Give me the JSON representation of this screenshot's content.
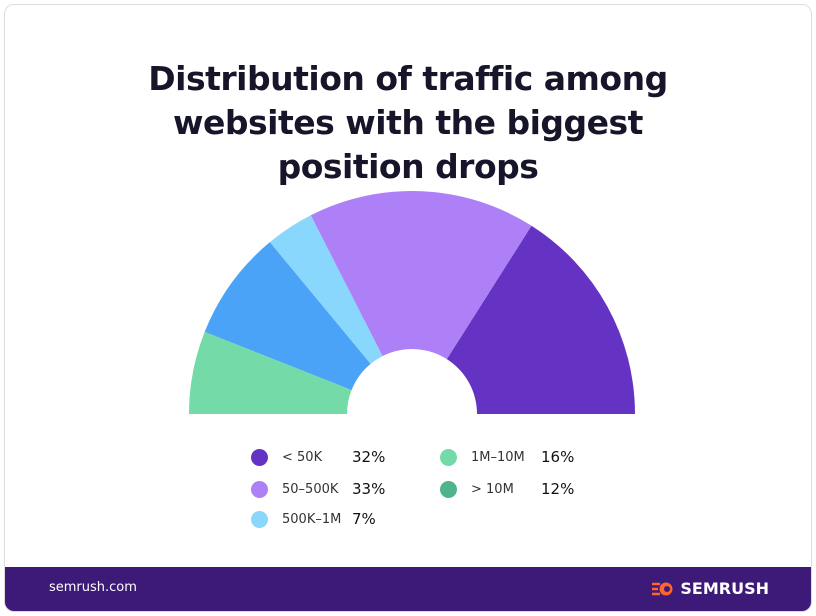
{
  "chart_data": {
    "type": "pie",
    "variant": "half-donut",
    "title": "Distribution of traffic among websites with the biggest position drops",
    "slices": [
      {
        "label": "< 50K",
        "value": 32,
        "color": "#6433c4",
        "legend_color": "#6433c4"
      },
      {
        "label": "50–500K",
        "value": 33,
        "color": "#ad80f8",
        "legend_color": "#ad80f8"
      },
      {
        "label": "500K–1M",
        "value": 7,
        "color": "#8ad7fd",
        "legend_color": "#8ad7fd"
      },
      {
        "label": "1M–10M",
        "value": 16,
        "color": "#4aa3f6",
        "legend_color": "#74dba8"
      },
      {
        "label": "> 10M",
        "value": 12,
        "color": "#74dba8",
        "legend_color": "#4fb48d"
      }
    ],
    "legend_placement": "bottom"
  },
  "footer": {
    "site": "semrush.com",
    "brand": "SEMRUSH",
    "bg": "#3d1a78",
    "logo_color": "#ff642d"
  }
}
